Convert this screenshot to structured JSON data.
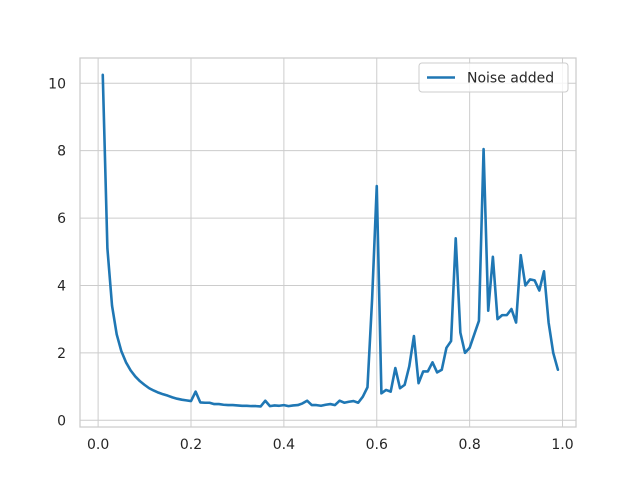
{
  "chart_data": {
    "type": "line",
    "title": "",
    "xlabel": "",
    "ylabel": "",
    "xlim": [
      -0.039,
      1.029
    ],
    "ylim": [
      -0.2,
      10.75
    ],
    "x_ticks": [
      0.0,
      0.2,
      0.4,
      0.6,
      0.8,
      1.0
    ],
    "x_tick_labels": [
      "0.0",
      "0.2",
      "0.4",
      "0.6",
      "0.8",
      "1.0"
    ],
    "y_ticks": [
      0,
      2,
      4,
      6,
      8,
      10
    ],
    "y_tick_labels": [
      "0",
      "2",
      "4",
      "6",
      "8",
      "10"
    ],
    "grid": true,
    "legend_position": "upper right",
    "series": [
      {
        "name": "Noise added",
        "color": "#1f77b4",
        "x": [
          0.01,
          0.02,
          0.03,
          0.04,
          0.05,
          0.06,
          0.07,
          0.08,
          0.09,
          0.1,
          0.11,
          0.12,
          0.13,
          0.14,
          0.15,
          0.16,
          0.17,
          0.18,
          0.19,
          0.2,
          0.21,
          0.22,
          0.23,
          0.24,
          0.25,
          0.26,
          0.27,
          0.28,
          0.29,
          0.3,
          0.31,
          0.32,
          0.33,
          0.34,
          0.35,
          0.36,
          0.37,
          0.38,
          0.39,
          0.4,
          0.41,
          0.42,
          0.43,
          0.44,
          0.45,
          0.46,
          0.47,
          0.48,
          0.49,
          0.5,
          0.51,
          0.52,
          0.53,
          0.54,
          0.55,
          0.56,
          0.57,
          0.58,
          0.59,
          0.6,
          0.61,
          0.62,
          0.63,
          0.64,
          0.65,
          0.66,
          0.67,
          0.68,
          0.69,
          0.7,
          0.71,
          0.72,
          0.73,
          0.74,
          0.75,
          0.76,
          0.77,
          0.78,
          0.79,
          0.8,
          0.81,
          0.82,
          0.83,
          0.84,
          0.85,
          0.86,
          0.87,
          0.88,
          0.89,
          0.9,
          0.91,
          0.92,
          0.93,
          0.94,
          0.95,
          0.96,
          0.97,
          0.98,
          0.99
        ],
        "values": [
          10.25,
          5.1,
          3.4,
          2.55,
          2.05,
          1.72,
          1.48,
          1.3,
          1.16,
          1.05,
          0.95,
          0.88,
          0.82,
          0.77,
          0.73,
          0.68,
          0.64,
          0.61,
          0.59,
          0.57,
          0.85,
          0.53,
          0.52,
          0.52,
          0.48,
          0.48,
          0.46,
          0.45,
          0.45,
          0.44,
          0.43,
          0.43,
          0.42,
          0.42,
          0.41,
          0.58,
          0.42,
          0.44,
          0.43,
          0.45,
          0.42,
          0.44,
          0.45,
          0.5,
          0.58,
          0.45,
          0.45,
          0.43,
          0.46,
          0.48,
          0.45,
          0.58,
          0.52,
          0.55,
          0.57,
          0.52,
          0.7,
          0.98,
          3.6,
          6.95,
          0.8,
          0.9,
          0.85,
          1.55,
          0.95,
          1.05,
          1.6,
          2.5,
          1.1,
          1.45,
          1.45,
          1.72,
          1.42,
          1.5,
          2.15,
          2.35,
          5.4,
          2.6,
          2.0,
          2.15,
          2.55,
          2.95,
          8.05,
          3.25,
          4.85,
          3.0,
          3.12,
          3.12,
          3.3,
          2.9,
          4.9,
          4.0,
          4.18,
          4.15,
          3.85,
          4.42,
          2.9,
          2.0,
          1.5
        ]
      }
    ]
  }
}
